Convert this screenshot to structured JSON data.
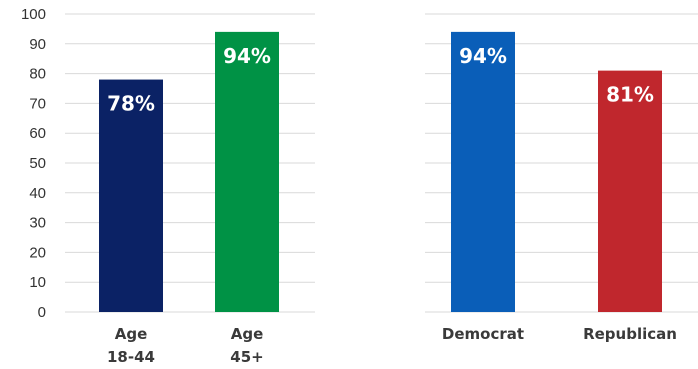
{
  "chart_data": [
    {
      "type": "bar",
      "categories": [
        [
          "Age",
          "18-44"
        ],
        [
          "Age",
          "45+"
        ]
      ],
      "values": [
        78,
        94
      ],
      "data_labels": [
        "78%",
        "94%"
      ],
      "colors": [
        "#0b2265",
        "#009245"
      ],
      "ylim": [
        0,
        100
      ],
      "y_ticks": [
        "0",
        "10",
        "20",
        "30",
        "40",
        "50",
        "60",
        "70",
        "80",
        "90",
        "100"
      ],
      "grid": true
    },
    {
      "type": "bar",
      "categories": [
        [
          "Democrat"
        ],
        [
          "Republican"
        ]
      ],
      "values": [
        94,
        81
      ],
      "data_labels": [
        "94%",
        "81%"
      ],
      "colors": [
        "#0a5eb8",
        "#c0272d"
      ],
      "ylim": [
        0,
        100
      ],
      "grid": true
    }
  ]
}
